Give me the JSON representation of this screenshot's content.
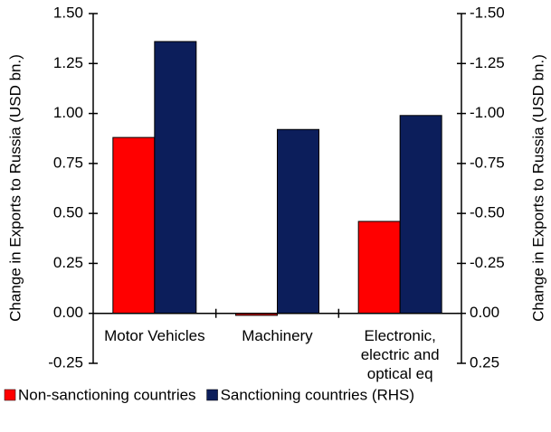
{
  "chart_data": {
    "type": "bar",
    "categories": [
      "Motor Vehicles",
      "Machinery",
      "Electronic, electric and optical eq"
    ],
    "series": [
      {
        "name": "Non-sanctioning countries",
        "color": "#ff0000",
        "values": [
          0.88,
          -0.01,
          0.46
        ]
      },
      {
        "name": "Sanctioning countries (RHS)",
        "color": "#0c1e5b",
        "values": [
          -1.36,
          -0.92,
          -0.99
        ],
        "axis": "y2"
      }
    ],
    "y_label": "Change in Exports to Russia (USD bn.)",
    "y2_label": "Change in Exports to Russia (USD bn.)",
    "ylim": [
      -0.25,
      1.5
    ],
    "yticks": [
      -0.25,
      {
        "value": 0,
        "label": "0.00"
      },
      0.25,
      {
        "value": 0.5,
        "label": "0.50"
      },
      0.75,
      {
        "value": 1,
        "label": "1.00"
      },
      1.25,
      {
        "value": 1.5,
        "label": "1.50"
      }
    ],
    "y2lim": [
      0.25,
      -1.5
    ],
    "y2ticks": [
      0.25,
      {
        "value": 0,
        "label": "0.00"
      },
      -0.25,
      {
        "value": -0.5,
        "label": "-0.50"
      },
      -0.75,
      {
        "value": -1,
        "label": "-1.00"
      },
      -1.25,
      {
        "value": -1.5,
        "label": "-1.50"
      }
    ],
    "legend": "bottom"
  }
}
